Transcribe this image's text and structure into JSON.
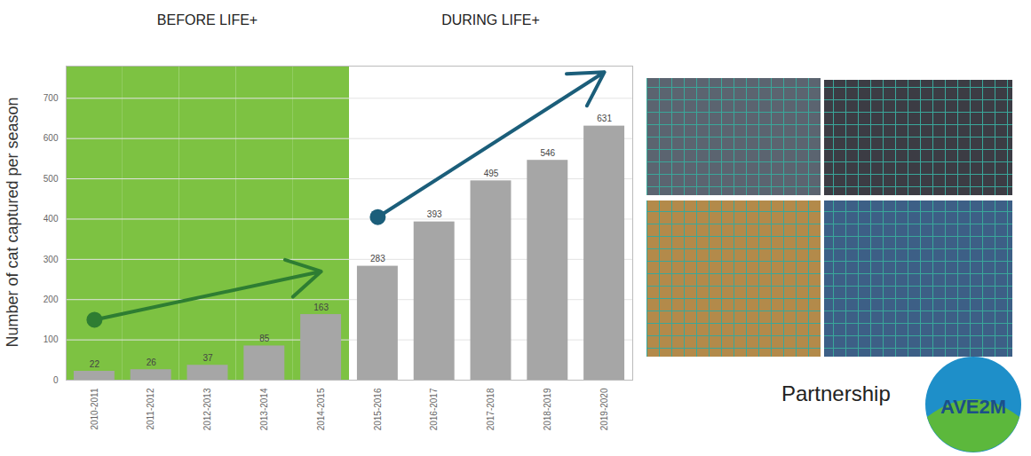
{
  "chart_data": {
    "type": "bar",
    "y_label": "Number of cat captured per season",
    "categories": [
      "2010-2011",
      "2011-2012",
      "2012-2013",
      "2013-2014",
      "2014-2015",
      "2015-2016",
      "2016-2017",
      "2017-2018",
      "2018-2019",
      "2019-2020"
    ],
    "values": [
      22,
      26,
      37,
      85,
      163,
      283,
      393,
      495,
      546,
      631
    ],
    "color": "#a6a6a6",
    "data_labels": true,
    "ylim": [
      0,
      780
    ],
    "yticks": [
      0,
      100,
      200,
      300,
      400,
      500,
      600,
      700
    ],
    "grid": true,
    "periods": [
      {
        "label": "BEFORE LIFE+",
        "from": "2010-2011",
        "to": "2014-2015",
        "color": "#7dc242"
      },
      {
        "label": "DURING LIFE+",
        "from": "2015-2016",
        "to": "2019-2020",
        "color": "#ffffff"
      }
    ],
    "trends": [
      {
        "from_category": "2010-2011",
        "from_value": 150,
        "to_category": "2014-2015",
        "to_value": 270,
        "color": "#2e7d32"
      },
      {
        "from_category": "2015-2016",
        "from_value": 405,
        "to_category": "2019-2020",
        "to_value": 765,
        "color": "#1b5e7a"
      }
    ],
    "annotations": {
      "partnership": "Partnership",
      "logo": "AVE2M"
    }
  }
}
